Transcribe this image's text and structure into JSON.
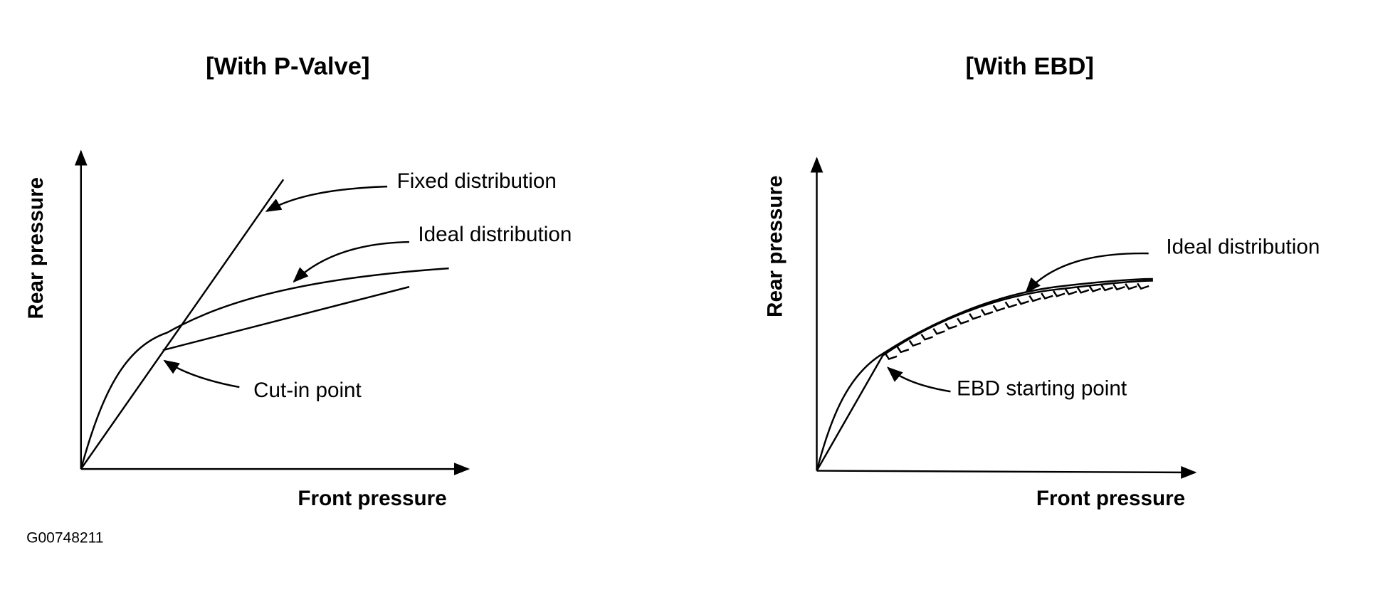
{
  "diagrams": [
    {
      "title": "[With P-Valve]",
      "y_axis_label": "Rear pressure",
      "x_axis_label": "Front pressure",
      "annotations": [
        "Fixed distribution",
        "Ideal distribution",
        "Cut-in point"
      ]
    },
    {
      "title": "[With EBD]",
      "y_axis_label": "Rear pressure",
      "x_axis_label": "Front pressure",
      "annotations": [
        "Ideal distribution",
        "EBD starting point"
      ]
    }
  ],
  "figure_id": "G00748211"
}
